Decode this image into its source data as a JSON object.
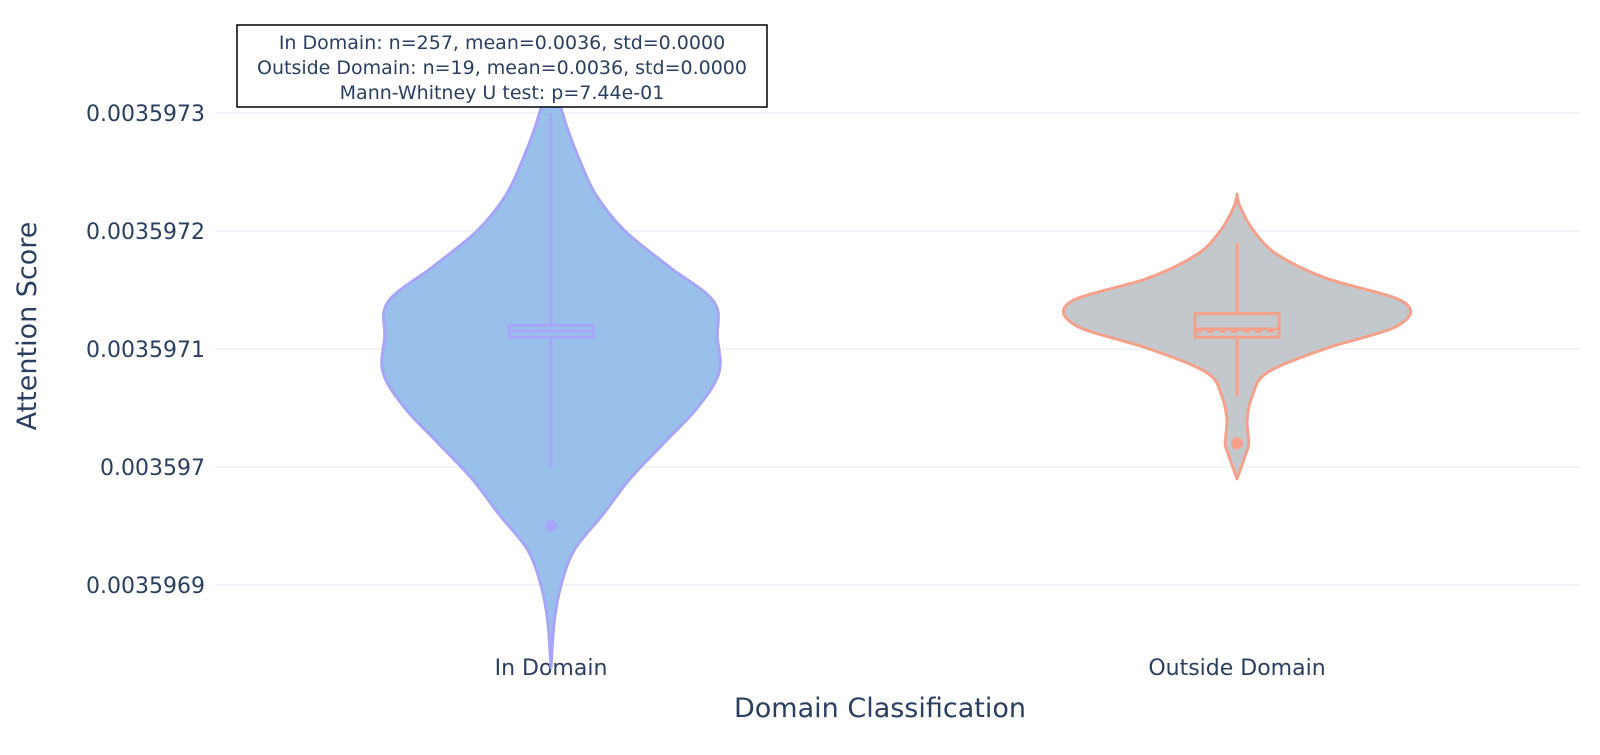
{
  "chart_data": {
    "type": "violin",
    "xlabel": "Domain Classification",
    "ylabel": "Attention Score",
    "categories": [
      "In Domain",
      "Outside Domain"
    ],
    "y_ticks": [
      0.0035969,
      0.003597,
      0.0035971,
      0.0035972,
      0.0035973
    ],
    "y_tick_labels": [
      "0.0035969",
      "0.003597",
      "0.0035971",
      "0.0035972",
      "0.0035973"
    ],
    "ylim": [
      0.00359687,
      0.00359734
    ],
    "grid": true,
    "legend": "none",
    "annotation": [
      "In Domain: n=257, mean=0.0036, std=0.0000",
      "Outside Domain: n=19, mean=0.0036, std=0.0000",
      "Mann-Whitney U test: p=7.44e-01"
    ],
    "series": [
      {
        "category": "In Domain",
        "fill_color": "#99c0ea",
        "line_color": "#a6a5f7",
        "q1": 0.00359711,
        "median": 0.003597115,
        "mean": 0.003597115,
        "q3": 0.00359712,
        "whisker_low": 0.003597,
        "whisker_high": 0.0035973,
        "outliers": [
          0.00359695
        ],
        "density": [
          [
            0.00359683,
            0.0
          ],
          [
            0.00359687,
            0.02
          ],
          [
            0.0035969,
            0.06
          ],
          [
            0.00359693,
            0.14
          ],
          [
            0.00359696,
            0.31
          ],
          [
            0.00359699,
            0.47
          ],
          [
            0.00359702,
            0.67
          ],
          [
            0.00359705,
            0.87
          ],
          [
            0.00359708,
            1.0
          ],
          [
            0.00359711,
            0.99
          ],
          [
            0.00359714,
            0.97
          ],
          [
            0.00359717,
            0.7
          ],
          [
            0.0035972,
            0.44
          ],
          [
            0.00359723,
            0.27
          ],
          [
            0.00359726,
            0.17
          ],
          [
            0.00359729,
            0.09
          ],
          [
            0.00359732,
            0.03
          ],
          [
            0.00359734,
            0.0
          ]
        ]
      },
      {
        "category": "Outside Domain",
        "fill_color": "#c3c8cc",
        "line_color": "#f5a08b",
        "q1": 0.00359711,
        "median": 0.003597117,
        "mean": 0.003597115,
        "q3": 0.00359713,
        "whisker_low": 0.00359706,
        "whisker_high": 0.00359719,
        "outliers": [
          0.00359702
        ],
        "density": [
          [
            0.00359699,
            0.0
          ],
          [
            0.00359701,
            0.05
          ],
          [
            0.00359702,
            0.07
          ],
          [
            0.00359704,
            0.06
          ],
          [
            0.00359706,
            0.09
          ],
          [
            0.00359708,
            0.18
          ],
          [
            0.0035971,
            0.52
          ],
          [
            0.00359712,
            0.96
          ],
          [
            0.00359714,
            0.99
          ],
          [
            0.00359716,
            0.53
          ],
          [
            0.00359718,
            0.24
          ],
          [
            0.0035972,
            0.1
          ],
          [
            0.00359722,
            0.02
          ],
          [
            0.00359723,
            0.0
          ]
        ]
      }
    ]
  }
}
